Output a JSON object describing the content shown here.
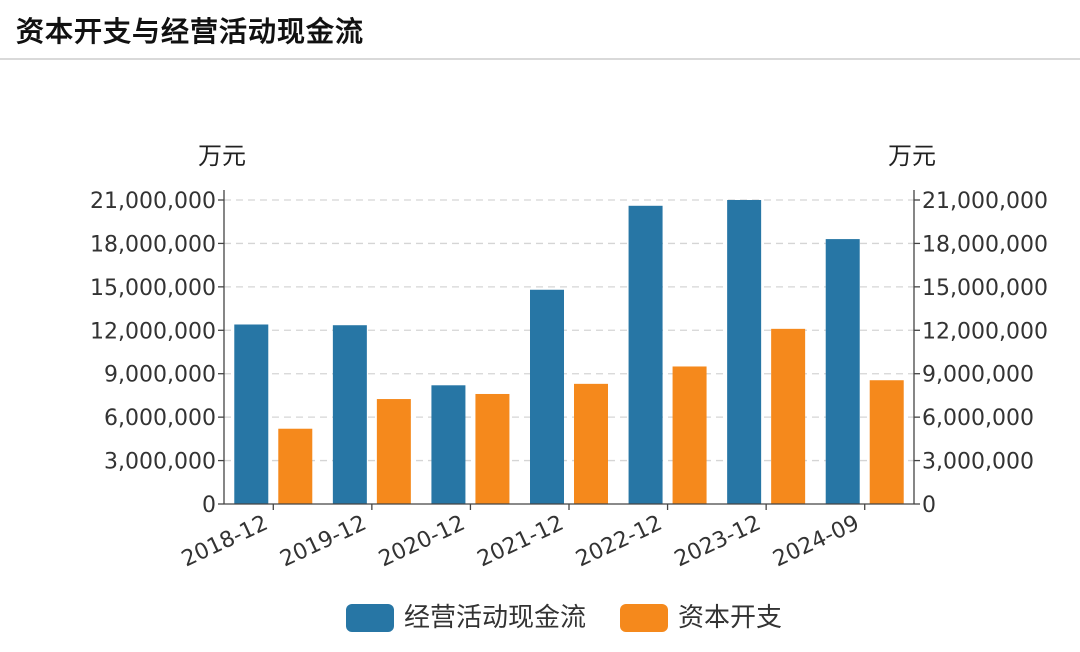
{
  "title": "资本开支与经营活动现金流",
  "chart_data": {
    "type": "bar",
    "title": "资本开支与经营活动现金流",
    "categories": [
      "2018-12",
      "2019-12",
      "2020-12",
      "2021-12",
      "2022-12",
      "2023-12",
      "2024-09"
    ],
    "series": [
      {
        "name": "经营活动现金流",
        "color": "#2776a5",
        "values": [
          12400000,
          12350000,
          8200000,
          14800000,
          20600000,
          21000000,
          18300000
        ]
      },
      {
        "name": "资本开支",
        "color": "#f5891c",
        "values": [
          5200000,
          7250000,
          7600000,
          8300000,
          9500000,
          12100000,
          8550000
        ]
      }
    ],
    "ylim": [
      0,
      21000000
    ],
    "yticks": [
      "0",
      "3,000,000",
      "6,000,000",
      "9,000,000",
      "12,000,000",
      "15,000,000",
      "18,000,000",
      "21,000,000"
    ],
    "y_left_unit": "万元",
    "y_right_unit": "万元",
    "grid": true,
    "legend": "bottom"
  }
}
